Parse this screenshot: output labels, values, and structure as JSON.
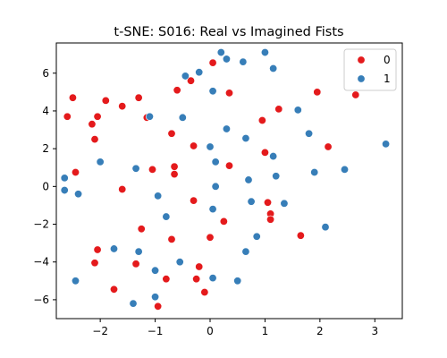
{
  "chart_data": {
    "type": "scatter",
    "title": "t-SNE: S016: Real vs Imagined Fists",
    "xlabel": "",
    "ylabel": "",
    "xlim": [
      -2.8,
      3.5
    ],
    "ylim": [
      -7.0,
      7.6
    ],
    "xticks": [
      -2,
      -1,
      0,
      1,
      2,
      3
    ],
    "xtick_labels": [
      "−2",
      "−1",
      "0",
      "1",
      "2",
      "3"
    ],
    "yticks": [
      -6,
      -4,
      -2,
      0,
      2,
      4,
      6
    ],
    "ytick_labels": [
      "−6",
      "−4",
      "−2",
      "0",
      "2",
      "4",
      "6"
    ],
    "grid": false,
    "legend_position": "top-right",
    "series": [
      {
        "name": "0",
        "color": "#e41a1c",
        "points": [
          [
            -2.6,
            3.7
          ],
          [
            -2.5,
            4.7
          ],
          [
            -2.45,
            0.75
          ],
          [
            -2.15,
            3.3
          ],
          [
            -2.05,
            3.7
          ],
          [
            -2.1,
            2.5
          ],
          [
            -1.9,
            4.55
          ],
          [
            -1.6,
            4.25
          ],
          [
            -1.6,
            -0.15
          ],
          [
            -1.3,
            4.7
          ],
          [
            -1.15,
            3.65
          ],
          [
            -1.05,
            0.9
          ],
          [
            -0.95,
            -6.35
          ],
          [
            -0.8,
            -4.9
          ],
          [
            -0.7,
            2.8
          ],
          [
            -0.65,
            1.05
          ],
          [
            -0.65,
            0.65
          ],
          [
            -0.6,
            5.1
          ],
          [
            -0.35,
            5.6
          ],
          [
            -0.3,
            2.15
          ],
          [
            -0.3,
            -0.75
          ],
          [
            -0.25,
            -4.9
          ],
          [
            -0.2,
            -4.25
          ],
          [
            -0.1,
            -5.6
          ],
          [
            0.05,
            6.55
          ],
          [
            0.35,
            4.95
          ],
          [
            0.35,
            1.1
          ],
          [
            0.0,
            -2.7
          ],
          [
            0.25,
            -1.85
          ],
          [
            0.95,
            3.5
          ],
          [
            1.0,
            1.8
          ],
          [
            1.05,
            -0.85
          ],
          [
            1.1,
            -1.45
          ],
          [
            1.1,
            -1.75
          ],
          [
            1.25,
            4.1
          ],
          [
            1.65,
            -2.6
          ],
          [
            1.95,
            5.0
          ],
          [
            2.15,
            2.1
          ],
          [
            2.65,
            4.85
          ],
          [
            -1.25,
            -2.25
          ],
          [
            -0.7,
            -2.8
          ],
          [
            -1.35,
            -4.1
          ],
          [
            -1.75,
            -5.45
          ],
          [
            -2.05,
            -3.35
          ],
          [
            -2.1,
            -4.05
          ]
        ]
      },
      {
        "name": "1",
        "color": "#377eb8",
        "points": [
          [
            -2.65,
            0.45
          ],
          [
            -2.65,
            -0.2
          ],
          [
            -2.45,
            -5.0
          ],
          [
            -2.4,
            -0.4
          ],
          [
            -2.0,
            1.3
          ],
          [
            -1.75,
            -3.3
          ],
          [
            -1.4,
            -6.2
          ],
          [
            -1.35,
            0.95
          ],
          [
            -1.3,
            -3.45
          ],
          [
            -1.1,
            3.7
          ],
          [
            -1.0,
            -5.85
          ],
          [
            -1.0,
            -4.45
          ],
          [
            -0.95,
            -0.5
          ],
          [
            -0.8,
            -1.6
          ],
          [
            -0.55,
            -4.0
          ],
          [
            -0.5,
            3.65
          ],
          [
            -0.45,
            5.85
          ],
          [
            -0.2,
            6.05
          ],
          [
            0.0,
            2.1
          ],
          [
            0.05,
            5.05
          ],
          [
            0.05,
            -1.2
          ],
          [
            0.1,
            1.3
          ],
          [
            0.1,
            0.0
          ],
          [
            0.2,
            7.1
          ],
          [
            0.3,
            6.75
          ],
          [
            0.3,
            3.05
          ],
          [
            0.6,
            6.6
          ],
          [
            0.65,
            2.55
          ],
          [
            0.65,
            -3.45
          ],
          [
            0.7,
            0.35
          ],
          [
            0.75,
            -0.8
          ],
          [
            0.85,
            -2.65
          ],
          [
            0.05,
            -4.85
          ],
          [
            0.5,
            -5.0
          ],
          [
            1.0,
            7.1
          ],
          [
            1.15,
            6.25
          ],
          [
            1.15,
            1.6
          ],
          [
            1.2,
            0.55
          ],
          [
            1.35,
            -0.9
          ],
          [
            1.6,
            4.05
          ],
          [
            1.8,
            2.8
          ],
          [
            1.9,
            0.75
          ],
          [
            2.1,
            -2.15
          ],
          [
            2.45,
            0.9
          ],
          [
            3.2,
            2.25
          ]
        ]
      }
    ]
  }
}
